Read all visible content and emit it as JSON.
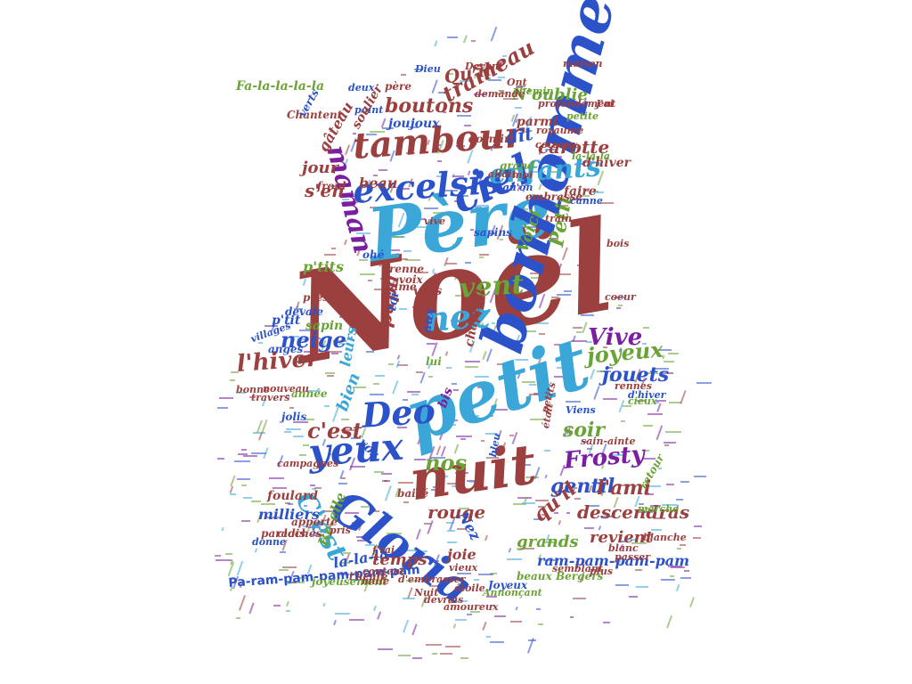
{
  "colors": {
    "background": "#ffffff",
    "brown": "#9b3f3f",
    "blue": "#2b52c8",
    "cyan": "#3aa7d8",
    "green": "#6aa336",
    "purple": "#7a1fa0"
  },
  "word_cloud": {
    "shape": "christmas-tree",
    "words": [
      {
        "text": "Noël",
        "color": "#9b3f3f"
      },
      {
        "text": "Père",
        "color": "#3aa7d8"
      },
      {
        "text": "petit",
        "color": "#3aa7d8"
      },
      {
        "text": "bonhomme",
        "color": "#2b52c8"
      },
      {
        "text": "nuit",
        "color": "#9b3f3f"
      },
      {
        "text": "Gloria",
        "color": "#2b52c8"
      },
      {
        "text": "ciel",
        "color": "#2b52c8"
      },
      {
        "text": "tambour",
        "color": "#9b3f3f"
      },
      {
        "text": "excelsis",
        "color": "#2b52c8"
      },
      {
        "text": "enfants",
        "color": "#3aa7d8"
      },
      {
        "text": "vent",
        "color": "#6aa336"
      },
      {
        "text": "nez",
        "color": "#3aa7d8"
      },
      {
        "text": "yeux",
        "color": "#2b52c8"
      },
      {
        "text": "Deo",
        "color": "#2b52c8"
      },
      {
        "text": "l'hiver",
        "color": "#9b3f3f"
      },
      {
        "text": "neige",
        "color": "#2b52c8"
      },
      {
        "text": "Vive",
        "color": "#7a1fa0"
      },
      {
        "text": "joyeux",
        "color": "#6aa336"
      },
      {
        "text": "jouets",
        "color": "#2b52c8"
      },
      {
        "text": "Frosty",
        "color": "#7a1fa0"
      },
      {
        "text": "c'est",
        "color": "#9b3f3f"
      },
      {
        "text": "nos",
        "color": "#6aa336"
      },
      {
        "text": "gentil",
        "color": "#2b52c8"
      },
      {
        "text": "l'ami",
        "color": "#9b3f3f"
      },
      {
        "text": "soir",
        "color": "#6aa336"
      },
      {
        "text": "descendras",
        "color": "#9b3f3f"
      },
      {
        "text": "qu'il",
        "color": "#9b3f3f"
      },
      {
        "text": "rouge",
        "color": "#9b3f3f"
      },
      {
        "text": "maman",
        "color": "#7a1fa0"
      },
      {
        "text": "boutons",
        "color": "#9b3f3f"
      },
      {
        "text": "traîneau",
        "color": "#9b3f3f"
      },
      {
        "text": "Qu'il",
        "color": "#9b3f3f"
      },
      {
        "text": "N'oublie",
        "color": "#6aa336"
      },
      {
        "text": "dit",
        "color": "#2b52c8"
      },
      {
        "text": "carotte",
        "color": "#9b3f3f"
      },
      {
        "text": "jour",
        "color": "#9b3f3f"
      },
      {
        "text": "beau",
        "color": "#9b3f3f"
      },
      {
        "text": "s'en",
        "color": "#9b3f3f"
      },
      {
        "text": "Petit",
        "color": "#6aa336"
      },
      {
        "text": "Voici",
        "color": "#6aa336"
      },
      {
        "text": "papa",
        "color": "#9b3f3f"
      },
      {
        "text": "bien",
        "color": "#3aa7d8"
      },
      {
        "text": "C'est",
        "color": "#3aa7d8"
      },
      {
        "text": "Be-elle",
        "color": "#6aa336"
      },
      {
        "text": "Nez",
        "color": "#2b52c8"
      },
      {
        "text": "la-la-la",
        "color": "#2b52c8"
      },
      {
        "text": "temps",
        "color": "#9b3f3f"
      },
      {
        "text": "grands",
        "color": "#6aa336"
      },
      {
        "text": "revient",
        "color": "#9b3f3f"
      },
      {
        "text": "joie",
        "color": "#9b3f3f"
      },
      {
        "text": "ram-pam-pam-pam",
        "color": "#2b52c8"
      },
      {
        "text": "Pa-ram-pam-pam-pam-pam",
        "color": "#2b52c8"
      },
      {
        "text": "milliers",
        "color": "#2b52c8"
      },
      {
        "text": "foulard",
        "color": "#9b3f3f"
      },
      {
        "text": "leurs",
        "color": "#3aa7d8"
      },
      {
        "text": "p'tits",
        "color": "#6aa336"
      },
      {
        "text": "p'tit",
        "color": "#2b52c8"
      },
      {
        "text": "vers",
        "color": "#9b3f3f"
      },
      {
        "text": "chapeau",
        "color": "#9b3f3f"
      },
      {
        "text": "Fa-la-la-la-la",
        "color": "#6aa336"
      },
      {
        "text": "sapins",
        "color": "#2b52c8"
      },
      {
        "text": "embrasse",
        "color": "#9b3f3f"
      },
      {
        "text": "voix",
        "color": "#9b3f3f"
      },
      {
        "text": "renne",
        "color": "#9b3f3f"
      },
      {
        "text": "aime",
        "color": "#9b3f3f"
      },
      {
        "text": "ohé",
        "color": "#2b52c8"
      },
      {
        "text": "joujoux",
        "color": "#2b52c8"
      },
      {
        "text": "parmi",
        "color": "#9b3f3f"
      },
      {
        "text": "d'hiver",
        "color": "#9b3f3f"
      },
      {
        "text": "faire",
        "color": "#9b3f3f"
      },
      {
        "text": "grand",
        "color": "#6aa336"
      },
      {
        "text": "dormir",
        "color": "#9b3f3f"
      },
      {
        "text": "Chantent",
        "color": "#9b3f3f"
      },
      {
        "text": "point",
        "color": "#2b52c8"
      },
      {
        "text": "deux",
        "color": "#2b52c8"
      },
      {
        "text": "père",
        "color": "#9b3f3f"
      },
      {
        "text": "Dieu",
        "color": "#2b52c8"
      },
      {
        "text": "Devant",
        "color": "#9b3f3f"
      },
      {
        "text": "chemin",
        "color": "#6aa336"
      },
      {
        "text": "demande",
        "color": "#9b3f3f"
      },
      {
        "text": "petite",
        "color": "#6aa336"
      },
      {
        "text": "sapin",
        "color": "#6aa336"
      },
      {
        "text": "anges",
        "color": "#2b52c8"
      },
      {
        "text": "villages",
        "color": "#2b52c8"
      },
      {
        "text": "année",
        "color": "#6aa336"
      },
      {
        "text": "bonne",
        "color": "#9b3f3f"
      },
      {
        "text": "travers",
        "color": "#9b3f3f"
      },
      {
        "text": "nouveau",
        "color": "#9b3f3f"
      },
      {
        "text": "près",
        "color": "#9b3f3f"
      },
      {
        "text": "aux",
        "color": "#2b52c8"
      },
      {
        "text": "lui",
        "color": "#6aa336"
      },
      {
        "text": "toi",
        "color": "#2b52c8"
      },
      {
        "text": "bis",
        "color": "#7a1fa0"
      },
      {
        "text": "vos",
        "color": "#2b52c8"
      },
      {
        "text": "clochés",
        "color": "#9b3f3f"
      },
      {
        "text": "apporte",
        "color": "#9b3f3f"
      },
      {
        "text": "paradis",
        "color": "#9b3f3f"
      },
      {
        "text": "donne",
        "color": "#2b52c8"
      },
      {
        "text": "campagnes",
        "color": "#9b3f3f"
      },
      {
        "text": "baisé",
        "color": "#9b3f3f"
      },
      {
        "text": "joyeusement",
        "color": "#6aa336"
      },
      {
        "text": "Nuit",
        "color": "#9b3f3f"
      },
      {
        "text": "content",
        "color": "#9b3f3f"
      },
      {
        "text": "d'embrasser",
        "color": "#9b3f3f"
      },
      {
        "text": "Joyeux",
        "color": "#2b52c8"
      },
      {
        "text": "Annonçant",
        "color": "#6aa336"
      },
      {
        "text": "beaux",
        "color": "#6aa336"
      },
      {
        "text": "Bergers",
        "color": "#6aa336"
      },
      {
        "text": "semblant",
        "color": "#9b3f3f"
      },
      {
        "text": "blanc",
        "color": "#9b3f3f"
      },
      {
        "text": "blanche",
        "color": "#9b3f3f"
      },
      {
        "text": "marche",
        "color": "#6aa336"
      },
      {
        "text": "sain-ainte",
        "color": "#9b3f3f"
      },
      {
        "text": "retour",
        "color": "#6aa336"
      },
      {
        "text": "Viens",
        "color": "#2b52c8"
      },
      {
        "text": "était",
        "color": "#9b3f3f"
      },
      {
        "text": "bleu",
        "color": "#2b52c8"
      },
      {
        "text": "petits",
        "color": "#9b3f3f"
      },
      {
        "text": "rennes",
        "color": "#9b3f3f"
      },
      {
        "text": "cieux",
        "color": "#6aa336"
      },
      {
        "text": "d'hiver",
        "color": "#2b52c8"
      },
      {
        "text": "coeur",
        "color": "#9b3f3f"
      },
      {
        "text": "bois",
        "color": "#9b3f3f"
      },
      {
        "text": "train",
        "color": "#9b3f3f"
      },
      {
        "text": "canne",
        "color": "#2b52c8"
      },
      {
        "text": "coteaux",
        "color": "#9b3f3f"
      },
      {
        "text": "la-la-la",
        "color": "#6aa336"
      },
      {
        "text": "qu'on",
        "color": "#2b52c8"
      },
      {
        "text": "allait",
        "color": "#9b3f3f"
      },
      {
        "text": "vive",
        "color": "#9b3f3f"
      },
      {
        "text": "moi",
        "color": "#9b3f3f"
      },
      {
        "text": "royaume",
        "color": "#9b3f3f"
      },
      {
        "text": "Ont",
        "color": "#9b3f3f"
      },
      {
        "text": "maison",
        "color": "#9b3f3f"
      },
      {
        "text": "profondément",
        "color": "#9b3f3f"
      },
      {
        "text": "J'ai",
        "color": "#9b3f3f"
      },
      {
        "text": "gâteau",
        "color": "#9b3f3f"
      },
      {
        "text": "soulier",
        "color": "#9b3f3f"
      },
      {
        "text": "verts",
        "color": "#2b52c8"
      },
      {
        "text": "froid",
        "color": "#9b3f3f"
      },
      {
        "text": "jolis",
        "color": "#2b52c8"
      },
      {
        "text": "dévale",
        "color": "#2b52c8"
      },
      {
        "text": "pris",
        "color": "#9b3f3f"
      },
      {
        "text": "l'heure",
        "color": "#9b3f3f"
      },
      {
        "text": "mille",
        "color": "#9b3f3f"
      },
      {
        "text": "devrais",
        "color": "#9b3f3f"
      },
      {
        "text": "passer",
        "color": "#9b3f3f"
      },
      {
        "text": "plus",
        "color": "#9b3f3f"
      },
      {
        "text": "vieux",
        "color": "#9b3f3f"
      },
      {
        "text": "f'rai",
        "color": "#9b3f3f"
      },
      {
        "text": "amoureux",
        "color": "#9b3f3f"
      },
      {
        "text": "étoile",
        "color": "#9b3f3f"
      }
    ]
  }
}
